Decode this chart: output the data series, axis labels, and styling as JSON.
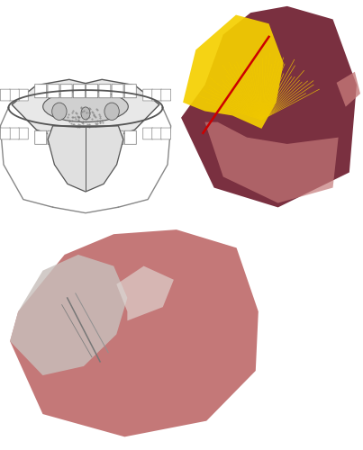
{
  "fig_width": 4.03,
  "fig_height": 5.0,
  "dpi": 100,
  "bg_color": "#ffffff",
  "tongue_base_color": "#7a3040",
  "tongue_light_color": "#c47878",
  "yellow_resection": "#f5d000",
  "red_line": "#cc0000",
  "scar_grey": "#c8c0bc",
  "scar_light": "#e0d8d4"
}
